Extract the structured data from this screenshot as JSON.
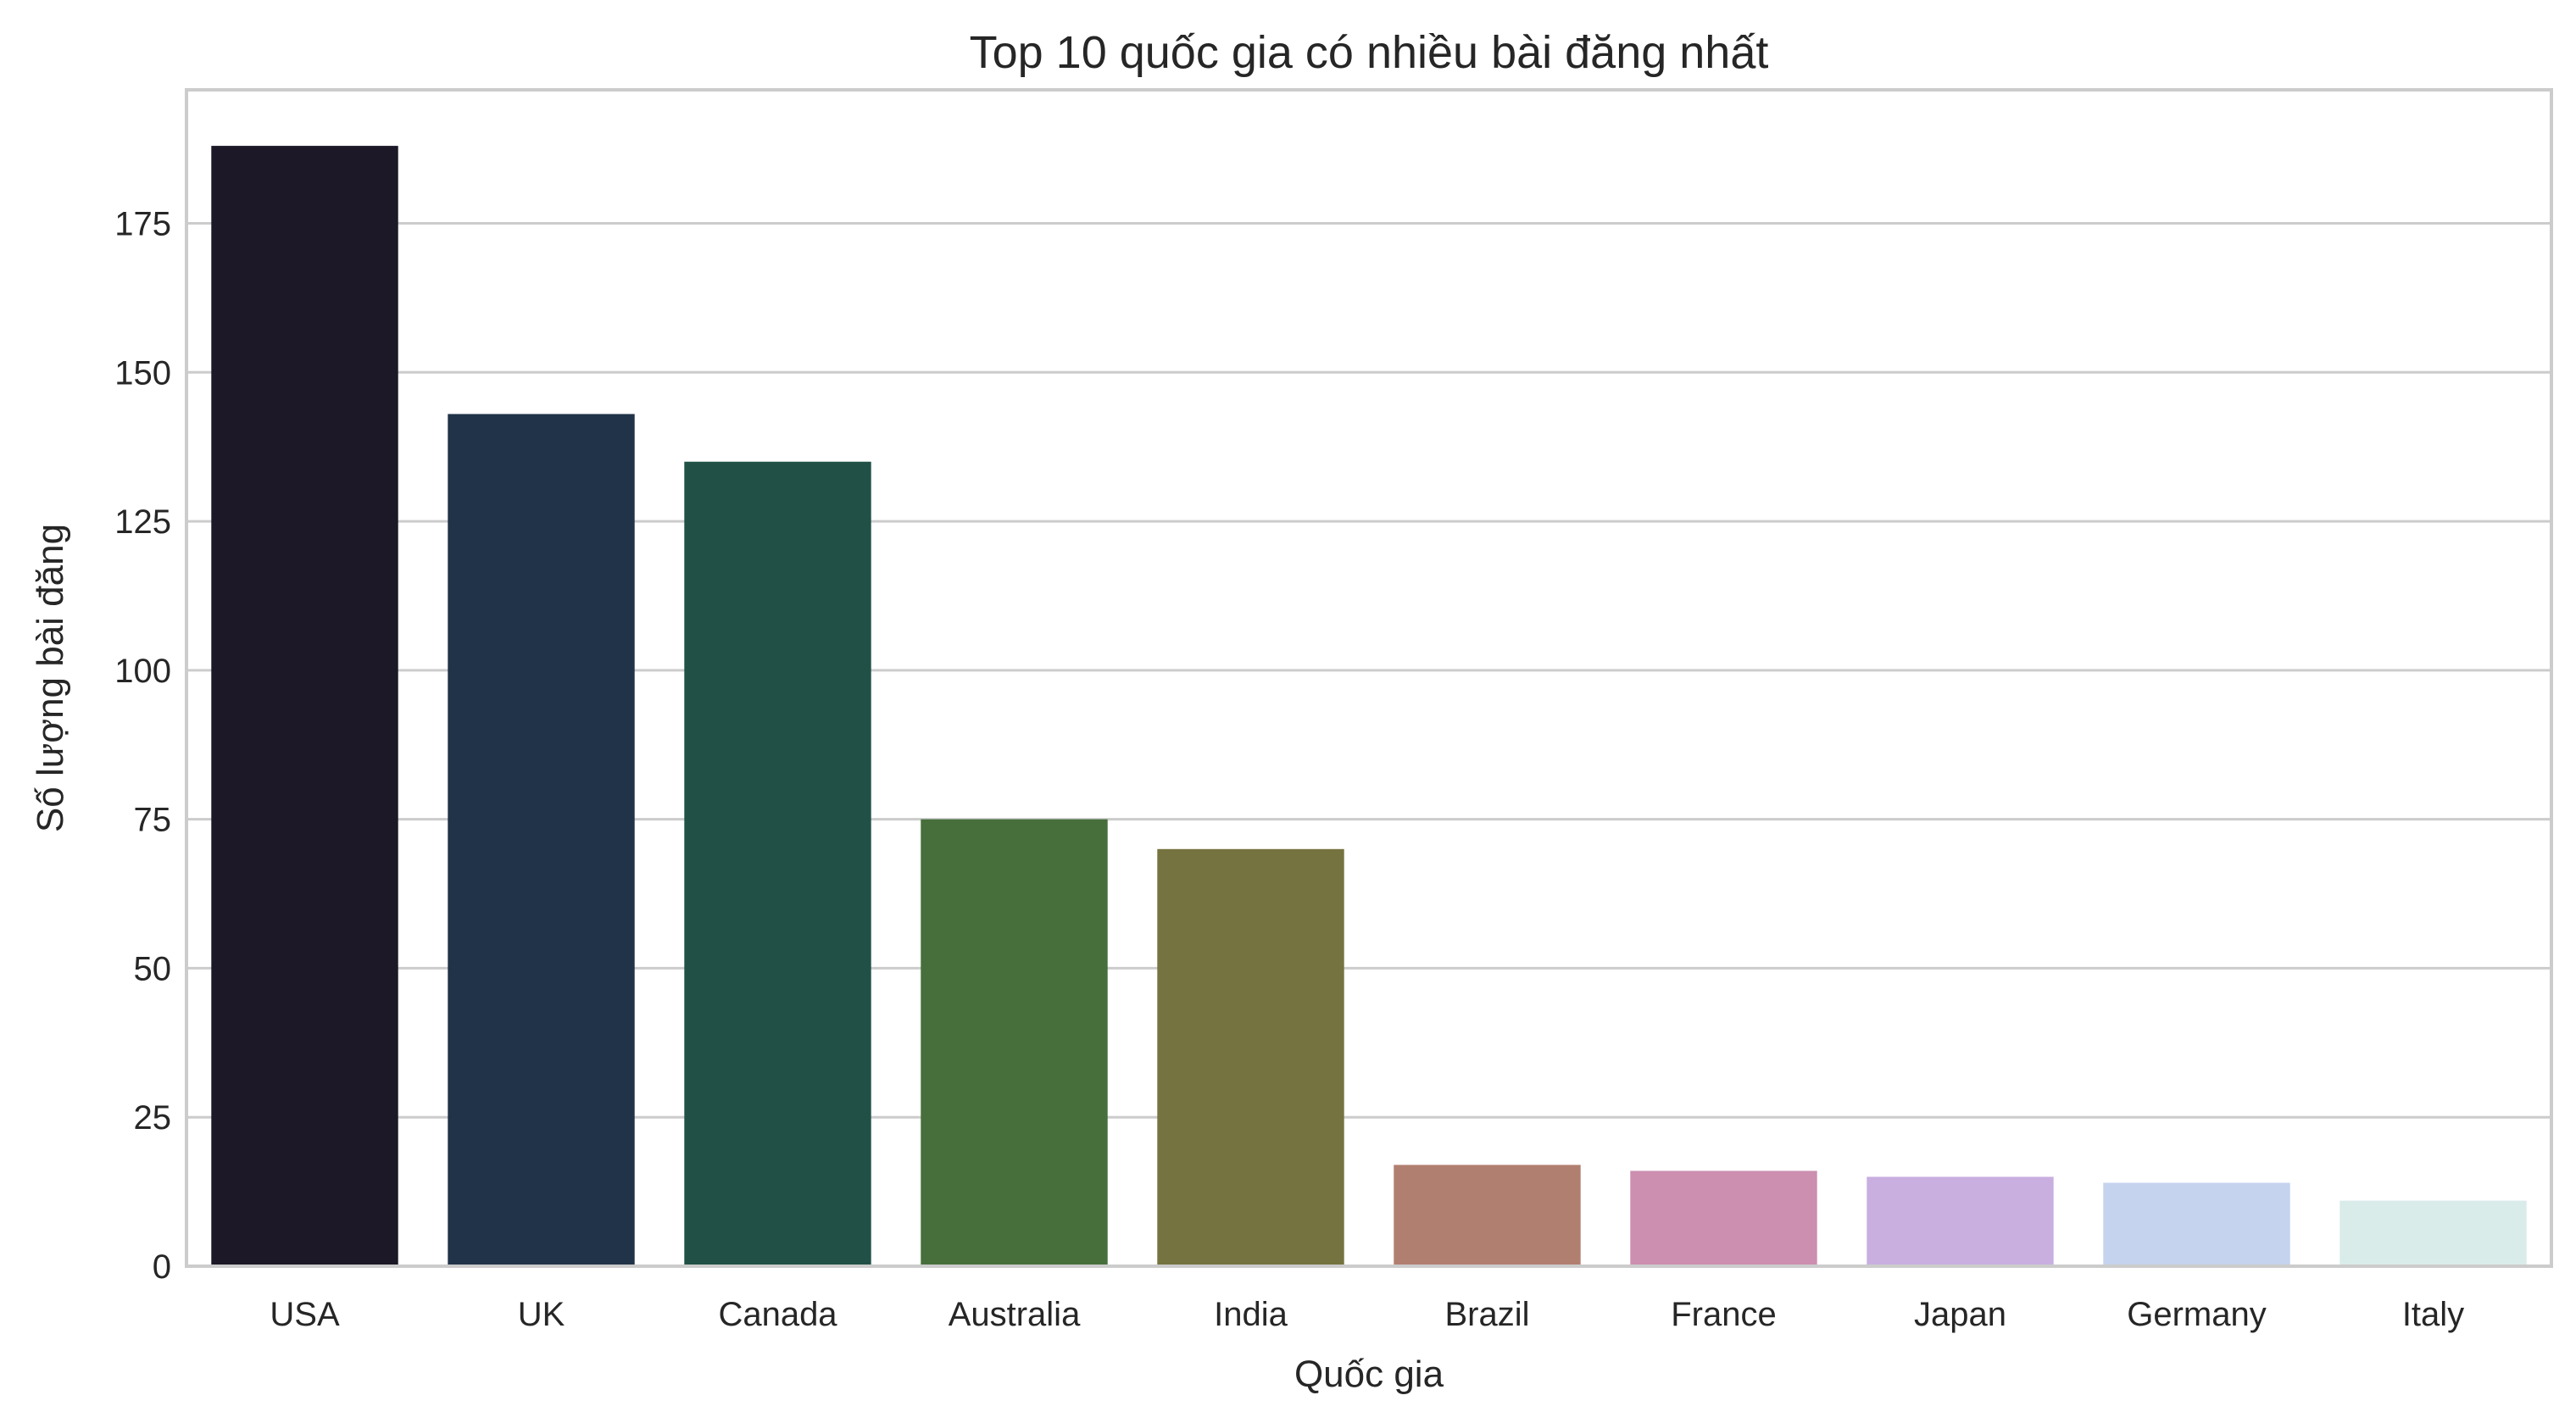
{
  "chart_data": {
    "type": "bar",
    "title": "Top 10 quốc gia có nhiều bài đăng nhất",
    "xlabel": "Quốc gia",
    "ylabel": "Số lượng bài đăng",
    "categories": [
      "USA",
      "UK",
      "Canada",
      "Australia",
      "India",
      "Brazil",
      "France",
      "Japan",
      "Germany",
      "Italy"
    ],
    "values": [
      188,
      143,
      135,
      75,
      70,
      17,
      16,
      15,
      14,
      11
    ],
    "colors": [
      "#1c1827",
      "#203348",
      "#215146",
      "#466f3b",
      "#75733f",
      "#b17f70",
      "#cc8fb0",
      "#c9aee0",
      "#c5d3ee",
      "#d9ecea"
    ],
    "yticks": [
      0,
      25,
      50,
      75,
      100,
      125,
      150,
      175
    ],
    "ylim": [
      0,
      197.4
    ],
    "grid": "horizontal",
    "legend": "none"
  }
}
